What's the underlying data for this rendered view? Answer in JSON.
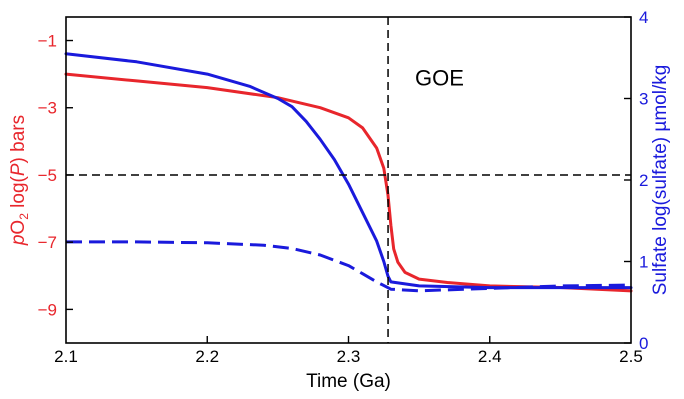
{
  "chart_data": {
    "type": "line",
    "title": "",
    "xlabel": "Time (Ga)",
    "ylabel_left": {
      "prefix_italic": "p",
      "base": "O",
      "subscript": "2",
      "main_pre": " log(",
      "main_italic": "P",
      "main_post": ") bars"
    },
    "ylabel_right": "Sulfate log(sulfate) µmol/kg",
    "xlim": [
      2.1,
      2.5
    ],
    "ylim_left": [
      -10,
      -0.3
    ],
    "ylim_right": [
      0,
      4
    ],
    "x_ticks": [
      {
        "v": 2.1,
        "label": "2.1"
      },
      {
        "v": 2.2,
        "label": "2.2"
      },
      {
        "v": 2.3,
        "label": "2.3"
      },
      {
        "v": 2.4,
        "label": "2.4"
      },
      {
        "v": 2.5,
        "label": "2.5"
      }
    ],
    "y_left_ticks": [
      {
        "v": -1,
        "label": "−1"
      },
      {
        "v": -3,
        "label": "−3"
      },
      {
        "v": -5,
        "label": "−5"
      },
      {
        "v": -7,
        "label": "−7"
      },
      {
        "v": -9,
        "label": "−9"
      }
    ],
    "y_right_ticks": [
      {
        "v": 0,
        "label": "0"
      },
      {
        "v": 1,
        "label": "1"
      },
      {
        "v": 2,
        "label": "2"
      },
      {
        "v": 3,
        "label": "3"
      },
      {
        "v": 4,
        "label": "4"
      }
    ],
    "annotations": [
      {
        "text": "GOE",
        "x": 2.34,
        "y_left": -2.1
      }
    ],
    "reference_lines": [
      {
        "orientation": "vertical",
        "axis": "x",
        "value": 2.328
      },
      {
        "orientation": "horizontal",
        "axis": "y_left",
        "value": -5
      }
    ],
    "colors": {
      "red": "#e8262c",
      "blue": "#1a1adc",
      "black": "#000000"
    },
    "series": [
      {
        "axis": "left",
        "style": "solid",
        "color": "red",
        "points": [
          [
            2.1,
            -2.0
          ],
          [
            2.15,
            -2.2
          ],
          [
            2.2,
            -2.4
          ],
          [
            2.25,
            -2.7
          ],
          [
            2.28,
            -3.0
          ],
          [
            2.3,
            -3.3
          ],
          [
            2.31,
            -3.6
          ],
          [
            2.32,
            -4.2
          ],
          [
            2.325,
            -4.8
          ],
          [
            2.328,
            -5.6
          ],
          [
            2.33,
            -6.5
          ],
          [
            2.332,
            -7.2
          ],
          [
            2.335,
            -7.6
          ],
          [
            2.34,
            -7.9
          ],
          [
            2.35,
            -8.1
          ],
          [
            2.37,
            -8.2
          ],
          [
            2.4,
            -8.3
          ],
          [
            2.45,
            -8.35
          ],
          [
            2.5,
            -8.45
          ]
        ]
      },
      {
        "axis": "right",
        "style": "solid",
        "color": "blue",
        "points": [
          [
            2.1,
            3.55
          ],
          [
            2.15,
            3.45
          ],
          [
            2.2,
            3.3
          ],
          [
            2.23,
            3.15
          ],
          [
            2.25,
            3.0
          ],
          [
            2.26,
            2.9
          ],
          [
            2.27,
            2.72
          ],
          [
            2.28,
            2.5
          ],
          [
            2.29,
            2.25
          ],
          [
            2.3,
            1.95
          ],
          [
            2.31,
            1.6
          ],
          [
            2.32,
            1.25
          ],
          [
            2.325,
            1.0
          ],
          [
            2.328,
            0.82
          ],
          [
            2.33,
            0.75
          ],
          [
            2.35,
            0.7
          ],
          [
            2.4,
            0.68
          ],
          [
            2.45,
            0.68
          ],
          [
            2.5,
            0.68
          ]
        ]
      },
      {
        "axis": "right",
        "style": "dashed",
        "color": "blue",
        "points": [
          [
            2.1,
            1.24
          ],
          [
            2.15,
            1.24
          ],
          [
            2.2,
            1.23
          ],
          [
            2.24,
            1.2
          ],
          [
            2.26,
            1.16
          ],
          [
            2.28,
            1.08
          ],
          [
            2.3,
            0.95
          ],
          [
            2.31,
            0.85
          ],
          [
            2.32,
            0.75
          ],
          [
            2.33,
            0.66
          ],
          [
            2.35,
            0.64
          ],
          [
            2.4,
            0.67
          ],
          [
            2.45,
            0.7
          ],
          [
            2.5,
            0.71
          ]
        ]
      }
    ]
  }
}
